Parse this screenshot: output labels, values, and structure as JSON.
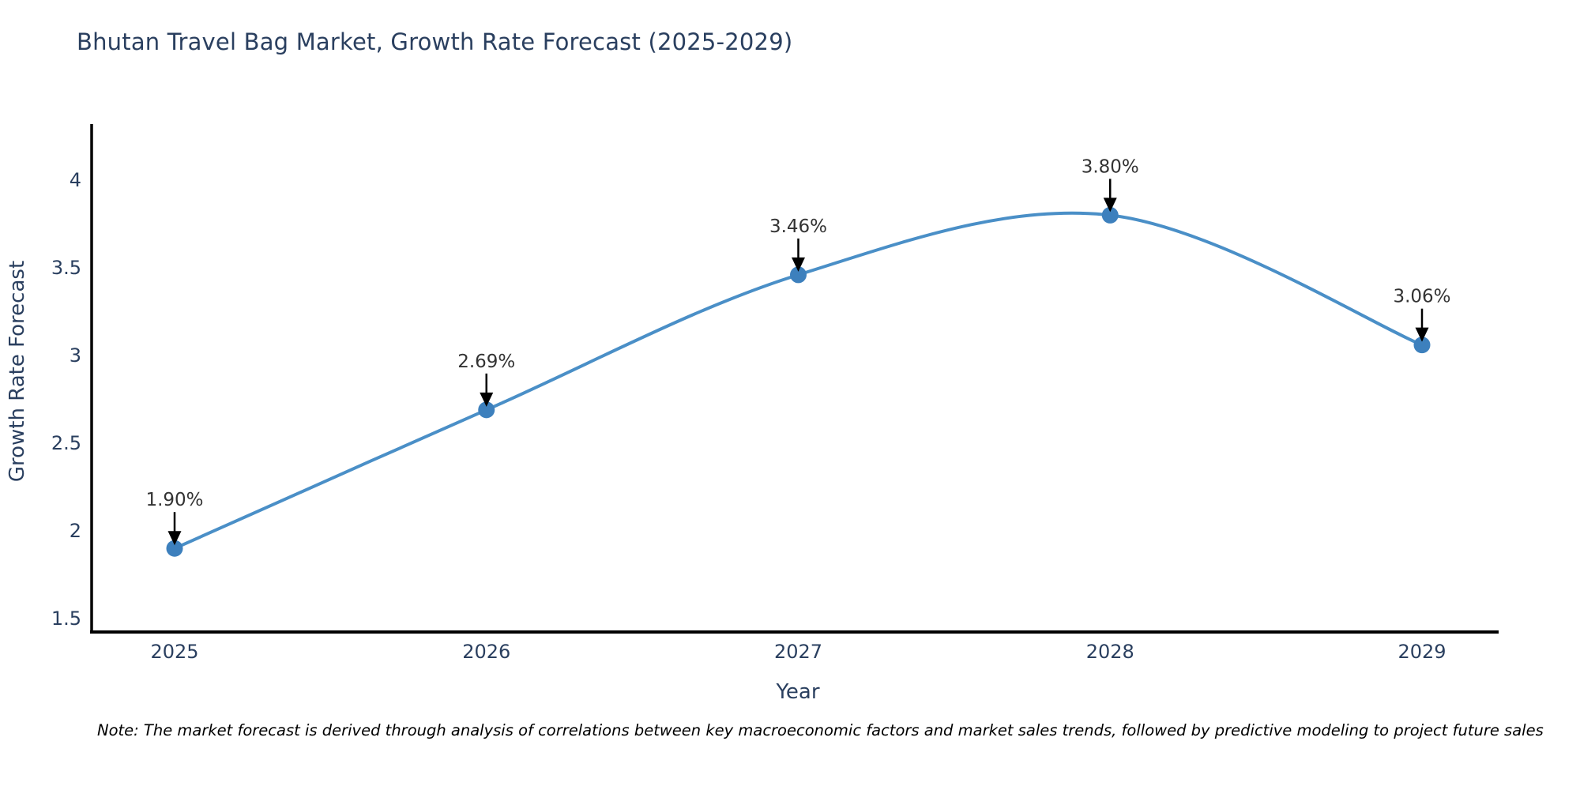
{
  "note": "Note: The market forecast is derived through analysis of correlations between key macroeconomic factors and market sales trends, followed by predictive modeling to project future sales",
  "chart_data": {
    "type": "line",
    "title": "Bhutan Travel Bag Market, Growth Rate Forecast (2025-2029)",
    "xlabel": "Year",
    "ylabel": "Growth Rate Forecast",
    "x": [
      2025,
      2026,
      2027,
      2028,
      2029
    ],
    "y": [
      1.9,
      2.69,
      3.46,
      3.8,
      3.06
    ],
    "point_labels": [
      "1.90%",
      "2.69%",
      "3.46%",
      "3.80%",
      "3.06%"
    ],
    "x_tick_labels": [
      "2025",
      "2026",
      "2027",
      "2028",
      "2029"
    ],
    "y_tick_values": [
      1.5,
      2,
      2.5,
      3,
      3.5,
      4
    ],
    "y_tick_labels": [
      "1.5",
      "2",
      "2.5",
      "3",
      "3.5",
      "4"
    ],
    "xlim": [
      2024.74,
      2029.25
    ],
    "ylim": [
      1.42,
      4.31
    ],
    "grid": false,
    "legend": "none",
    "smooth": true,
    "annotations_have_arrows": true,
    "colors": {
      "line": "#4a8fc7",
      "marker": "#3d80bd",
      "axis": "#000000",
      "tick_label": "#2a3f5f",
      "axis_title": "#2a3f5f",
      "chart_title": "#2a3f5f",
      "annotation_text": "#333333",
      "annotation_arrow": "#000000"
    }
  }
}
